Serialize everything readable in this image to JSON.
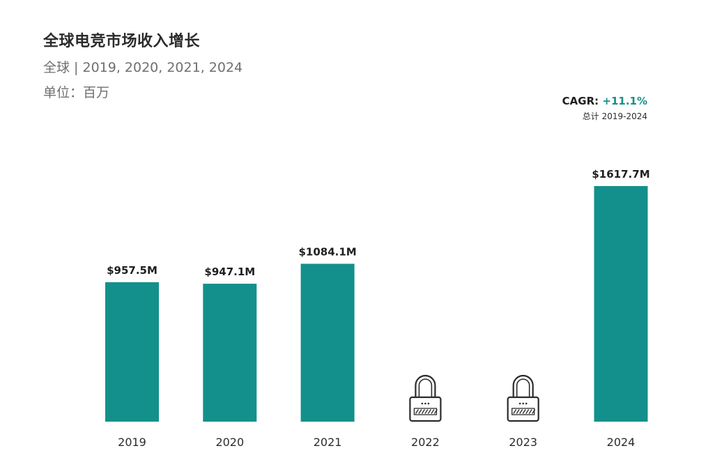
{
  "header": {
    "title": "全球电竞市场收入增长",
    "subtitle": "全球 | 2019, 2020, 2021, 2024",
    "unit": "单位：百万"
  },
  "cagr": {
    "label": "CAGR:",
    "value": "+11.1%",
    "period": "总计 2019-2024"
  },
  "colors": {
    "bar": "#13908c",
    "accent": "#13908c",
    "lock": "#2b2b2b"
  },
  "chart_data": {
    "type": "bar",
    "title": "全球电竞市场收入增长",
    "xlabel": "",
    "ylabel": "",
    "categories": [
      "2019",
      "2020",
      "2021",
      "2022",
      "2023",
      "2024"
    ],
    "values": [
      957.5,
      947.1,
      1084.1,
      null,
      null,
      1617.7
    ],
    "data_labels": [
      "$957.5M",
      "$947.1M",
      "$1084.1M",
      null,
      null,
      "$1617.7M"
    ],
    "locked": [
      false,
      false,
      false,
      true,
      true,
      false
    ],
    "locked_icon": "lock-icon",
    "ylim": [
      0,
      1617.7
    ],
    "grid": false,
    "legend": "none"
  }
}
